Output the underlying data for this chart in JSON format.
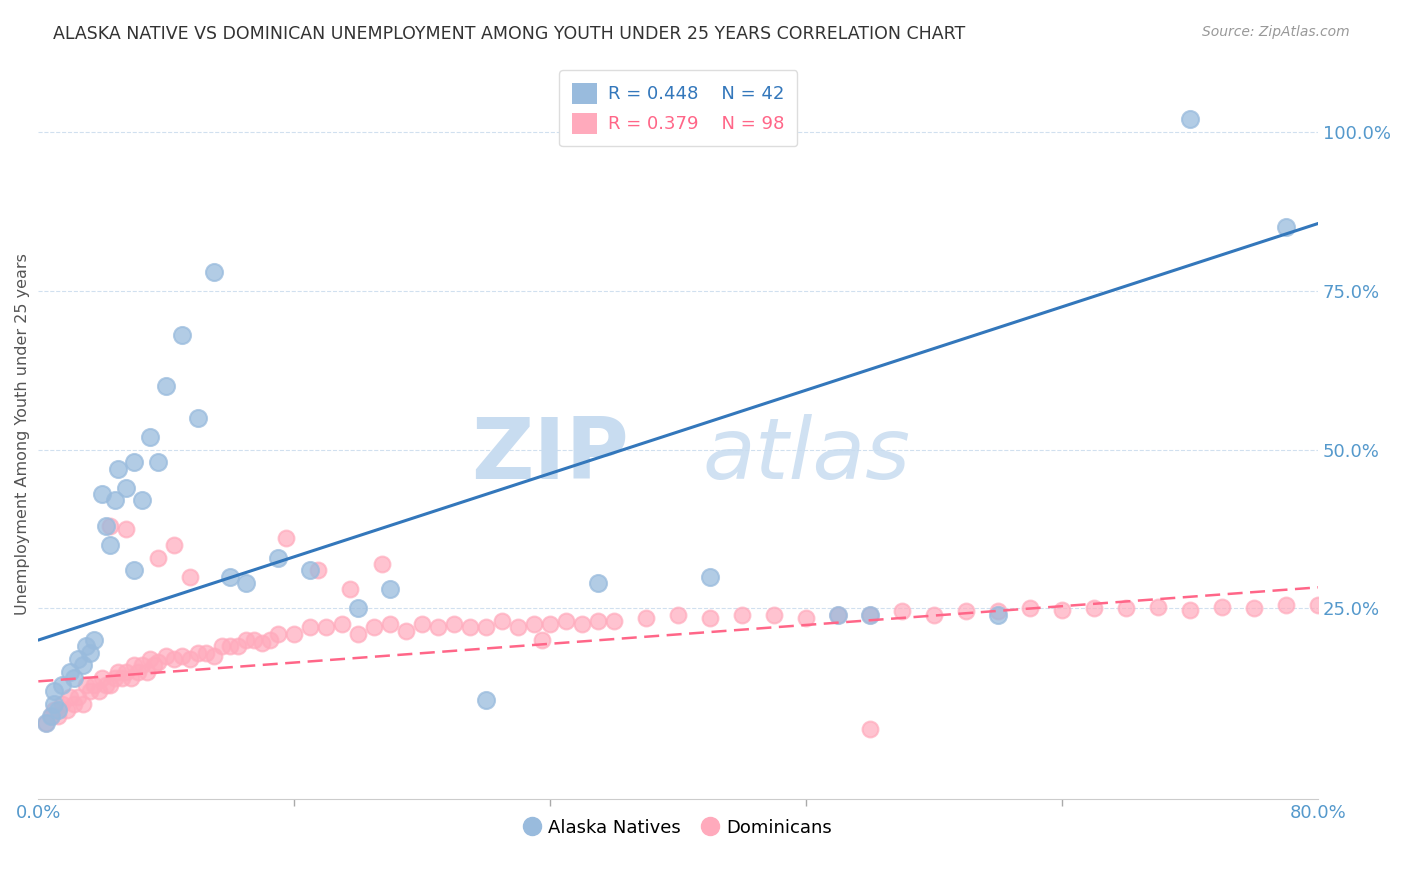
{
  "title": "ALASKA NATIVE VS DOMINICAN UNEMPLOYMENT AMONG YOUTH UNDER 25 YEARS CORRELATION CHART",
  "source": "Source: ZipAtlas.com",
  "ylabel": "Unemployment Among Youth under 25 years",
  "xlim": [
    0.0,
    0.8
  ],
  "ylim": [
    -0.05,
    1.1
  ],
  "legend_blue_r": "R = 0.448",
  "legend_blue_n": "N = 42",
  "legend_pink_r": "R = 0.379",
  "legend_pink_n": "N = 98",
  "blue_color": "#99BBDD",
  "pink_color": "#FFAABC",
  "blue_line_color": "#3377BB",
  "pink_line_color": "#FF6688",
  "blue_intercept": 0.2,
  "blue_slope": 0.82,
  "pink_intercept": 0.135,
  "pink_slope": 0.185,
  "alaska_x": [
    0.005,
    0.008,
    0.01,
    0.01,
    0.012,
    0.015,
    0.02,
    0.022,
    0.025,
    0.028,
    0.03,
    0.032,
    0.035,
    0.04,
    0.042,
    0.045,
    0.048,
    0.05,
    0.055,
    0.06,
    0.065,
    0.07,
    0.075,
    0.08,
    0.09,
    0.1,
    0.11,
    0.12,
    0.13,
    0.15,
    0.17,
    0.2,
    0.22,
    0.28,
    0.35,
    0.42,
    0.5,
    0.52,
    0.6,
    0.72,
    0.78,
    0.06
  ],
  "alaska_y": [
    0.07,
    0.08,
    0.1,
    0.12,
    0.09,
    0.13,
    0.15,
    0.14,
    0.17,
    0.16,
    0.19,
    0.18,
    0.2,
    0.43,
    0.38,
    0.35,
    0.42,
    0.47,
    0.44,
    0.48,
    0.42,
    0.52,
    0.48,
    0.6,
    0.68,
    0.55,
    0.78,
    0.3,
    0.29,
    0.33,
    0.31,
    0.25,
    0.28,
    0.105,
    0.29,
    0.3,
    0.24,
    0.24,
    0.24,
    1.02,
    0.85,
    0.31
  ],
  "dominican_x": [
    0.005,
    0.008,
    0.01,
    0.012,
    0.015,
    0.018,
    0.02,
    0.022,
    0.025,
    0.028,
    0.03,
    0.032,
    0.035,
    0.038,
    0.04,
    0.042,
    0.045,
    0.048,
    0.05,
    0.052,
    0.055,
    0.058,
    0.06,
    0.062,
    0.065,
    0.068,
    0.07,
    0.072,
    0.075,
    0.08,
    0.085,
    0.09,
    0.095,
    0.1,
    0.105,
    0.11,
    0.115,
    0.12,
    0.125,
    0.13,
    0.135,
    0.14,
    0.145,
    0.15,
    0.16,
    0.17,
    0.18,
    0.19,
    0.2,
    0.21,
    0.22,
    0.23,
    0.24,
    0.25,
    0.26,
    0.27,
    0.28,
    0.29,
    0.3,
    0.31,
    0.32,
    0.33,
    0.34,
    0.35,
    0.36,
    0.38,
    0.4,
    0.42,
    0.44,
    0.46,
    0.48,
    0.5,
    0.52,
    0.54,
    0.56,
    0.58,
    0.6,
    0.62,
    0.64,
    0.66,
    0.68,
    0.7,
    0.72,
    0.74,
    0.76,
    0.78,
    0.8,
    0.045,
    0.055,
    0.075,
    0.085,
    0.095,
    0.155,
    0.175,
    0.195,
    0.215,
    0.315,
    0.52
  ],
  "dominican_y": [
    0.07,
    0.08,
    0.09,
    0.08,
    0.1,
    0.09,
    0.11,
    0.1,
    0.11,
    0.1,
    0.13,
    0.12,
    0.13,
    0.12,
    0.14,
    0.13,
    0.13,
    0.14,
    0.15,
    0.14,
    0.15,
    0.14,
    0.16,
    0.15,
    0.16,
    0.15,
    0.17,
    0.16,
    0.165,
    0.175,
    0.17,
    0.175,
    0.17,
    0.18,
    0.18,
    0.175,
    0.19,
    0.19,
    0.19,
    0.2,
    0.2,
    0.195,
    0.2,
    0.21,
    0.21,
    0.22,
    0.22,
    0.225,
    0.21,
    0.22,
    0.225,
    0.215,
    0.225,
    0.22,
    0.225,
    0.22,
    0.22,
    0.23,
    0.22,
    0.225,
    0.225,
    0.23,
    0.225,
    0.23,
    0.23,
    0.235,
    0.24,
    0.235,
    0.24,
    0.24,
    0.235,
    0.24,
    0.24,
    0.245,
    0.24,
    0.245,
    0.245,
    0.25,
    0.248,
    0.25,
    0.25,
    0.252,
    0.248,
    0.252,
    0.25,
    0.255,
    0.255,
    0.38,
    0.375,
    0.33,
    0.35,
    0.3,
    0.36,
    0.31,
    0.28,
    0.32,
    0.2,
    0.06
  ]
}
